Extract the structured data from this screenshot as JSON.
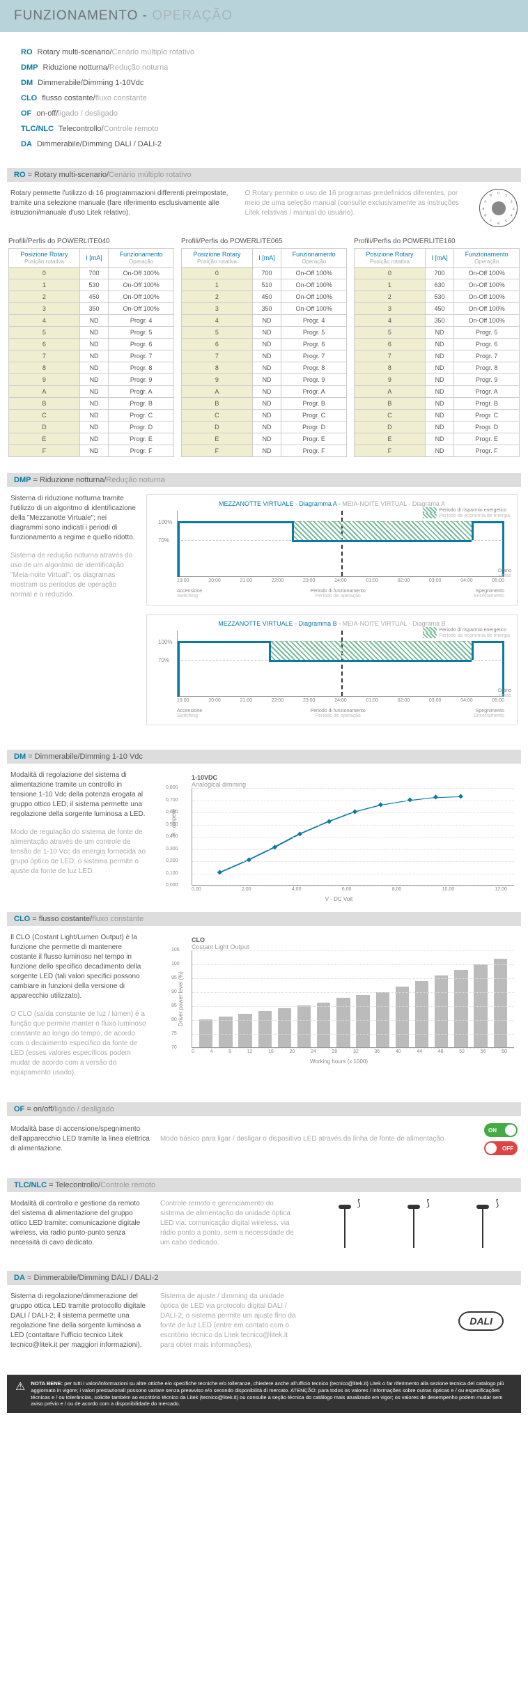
{
  "header": {
    "it": "FUNZIONAMENTO",
    "pt": "OPERAÇÃO"
  },
  "codes": [
    {
      "c": "RO",
      "it": "Rotary multi-scenario",
      "pt": "Cenário múltiplo rotativo"
    },
    {
      "c": "DMP",
      "it": "Riduzione notturna",
      "pt": "Redução noturna"
    },
    {
      "c": "DM",
      "it": "Dimmerabile/Dimming 1-10Vdc",
      "pt": ""
    },
    {
      "c": "CLO",
      "it": "flusso costante",
      "pt": "fluxo constante"
    },
    {
      "c": "OF",
      "it": "on-off",
      "pt": "ligado / desligado"
    },
    {
      "c": "TLC/NLC",
      "it": "Telecontrollo",
      "pt": "Controle remoto"
    },
    {
      "c": "DA",
      "it": "Dimmerabile/Dimming DALI / DALI-2",
      "pt": ""
    }
  ],
  "ro": {
    "bar": {
      "c": "RO",
      "it": "Rotary multi-scenario",
      "pt": "Cenário múltiplo rotativo"
    },
    "txt_it": "Rotary permette l'utilizzo di 16 programmazioni differenti preimpostate, tramite una selezione manuale (fare riferimento esclusivamente alle istruzioni/manuale d'uso Litek relativo).",
    "txt_pt": "O Rotary permite o uso de 16 programas predefinidos diferentes, por meio de uma seleção manual (consulte exclusivamente as instruções Litek relativas / manual do usuário).",
    "col_pos": {
      "it": "Posizione Rotary",
      "pt": "Posição rotativa"
    },
    "col_i": "I [mA]",
    "col_fun": {
      "it": "Funzionamento",
      "pt": "Operação"
    },
    "tables": [
      {
        "title": "Profili/Perfis do POWERLITE040",
        "rows": [
          [
            "0",
            "700",
            "On-Off 100%"
          ],
          [
            "1",
            "530",
            "On-Off 100%"
          ],
          [
            "2",
            "450",
            "On-Off 100%"
          ],
          [
            "3",
            "350",
            "On-Off 100%"
          ],
          [
            "4",
            "ND",
            "Progr. 4"
          ],
          [
            "5",
            "ND",
            "Progr. 5"
          ],
          [
            "6",
            "ND",
            "Progr. 6"
          ],
          [
            "7",
            "ND",
            "Progr. 7"
          ],
          [
            "8",
            "ND",
            "Progr. 8"
          ],
          [
            "9",
            "ND",
            "Progr. 9"
          ],
          [
            "A",
            "ND",
            "Progr. A"
          ],
          [
            "B",
            "ND",
            "Progr. B"
          ],
          [
            "C",
            "ND",
            "Progr. C"
          ],
          [
            "D",
            "ND",
            "Progr. D"
          ],
          [
            "E",
            "ND",
            "Progr. E"
          ],
          [
            "F",
            "ND",
            "Progr. F"
          ]
        ]
      },
      {
        "title": "Profili/Perfis do POWERLITE065",
        "rows": [
          [
            "0",
            "700",
            "On-Off 100%"
          ],
          [
            "1",
            "510",
            "On-Off 100%"
          ],
          [
            "2",
            "450",
            "On-Off 100%"
          ],
          [
            "3",
            "350",
            "On-Off 100%"
          ],
          [
            "4",
            "ND",
            "Progr. 4"
          ],
          [
            "5",
            "ND",
            "Progr. 5"
          ],
          [
            "6",
            "ND",
            "Progr. 6"
          ],
          [
            "7",
            "ND",
            "Progr. 7"
          ],
          [
            "8",
            "ND",
            "Progr. 8"
          ],
          [
            "9",
            "ND",
            "Progr. 9"
          ],
          [
            "A",
            "ND",
            "Progr. A"
          ],
          [
            "B",
            "ND",
            "Progr. B"
          ],
          [
            "C",
            "ND",
            "Progr. C"
          ],
          [
            "D",
            "ND",
            "Progr. D"
          ],
          [
            "E",
            "ND",
            "Progr. E"
          ],
          [
            "F",
            "ND",
            "Progr. F"
          ]
        ]
      },
      {
        "title": "Profili/Perfis do POWERLITE160",
        "rows": [
          [
            "0",
            "700",
            "On-Off 100%"
          ],
          [
            "1",
            "630",
            "On-Off 100%"
          ],
          [
            "2",
            "530",
            "On-Off 100%"
          ],
          [
            "3",
            "450",
            "On-Off 100%"
          ],
          [
            "4",
            "350",
            "On-Off 100%"
          ],
          [
            "5",
            "ND",
            "Progr. 5"
          ],
          [
            "6",
            "ND",
            "Progr. 6"
          ],
          [
            "7",
            "ND",
            "Progr. 7"
          ],
          [
            "8",
            "ND",
            "Progr. 8"
          ],
          [
            "9",
            "ND",
            "Progr. 9"
          ],
          [
            "A",
            "ND",
            "Progr. A"
          ],
          [
            "B",
            "ND",
            "Progr. B"
          ],
          [
            "C",
            "ND",
            "Progr. C"
          ],
          [
            "D",
            "ND",
            "Progr. D"
          ],
          [
            "E",
            "ND",
            "Progr. E"
          ],
          [
            "F",
            "ND",
            "Progr. F"
          ]
        ]
      }
    ]
  },
  "dmp": {
    "bar": {
      "c": "DMP",
      "it": "Riduzione notturna",
      "pt": "Redução noturna"
    },
    "txt_it": "Sistema di riduzione notturna tramite l'utilizzo di un algoritmo di identificazione della \"Mezzanotte Virtuale\"; nei diagrammi sono indicati i periodi di funzionamento a regime e quello ridotto.",
    "txt_pt": "Sistema de redução noturna através do uso de um algoritmo de identificação \"Meia-noite Virtual\"; os diagramas mostram os períodos de operação normal e o reduzido.",
    "ch_a": {
      "it": "MEZZANOTTE VIRTUALE - Diagramma A",
      "pt": "MEIA-NOITE VIRTUAL - Diagrama A"
    },
    "ch_b": {
      "it": "MEZZANOTTE VIRTUALE - Diagramma B",
      "pt": "MEIA-NOITE VIRTUAL - Diagrama B"
    },
    "legend": {
      "it": "Periodo di risparmio energetico",
      "pt": "Período de economia de energia"
    },
    "xlabels": [
      "19:00",
      "20:00",
      "21:00",
      "22:00",
      "23:00",
      "24:00",
      "01:00",
      "02:00",
      "03:00",
      "04:00",
      "05:00"
    ],
    "ylevels": [
      "100%",
      "70%"
    ],
    "btm": {
      "acc_it": "Accensione",
      "acc_pt": "Switching",
      "per_it": "Periodo di funzionamento",
      "per_pt": "Período de operação",
      "spg_it": "Spegnimento",
      "spg_pt": "Encerramento",
      "or_it": "Orario",
      "or_pt": "Horas"
    },
    "axis_v": {
      "it": "Potenza assorbita",
      "pt": "P.tomada"
    }
  },
  "dm": {
    "bar": {
      "c": "DM",
      "it": "Dimmerabile/Dimming 1-10 Vdc",
      "pt": ""
    },
    "txt_it": "Modalità di regolazione del sistema di alimentazione tramite un controllo in tensione 1-10 Vdc della potenza erogata al gruppo ottico LED; il sistema permette una regolazione della sorgente luminosa a LED.",
    "txt_pt": "Modo de regulação do sistema de fonte de alimentação através de um controle de tensão de 1-10 Vcc da energia fornecida ao grupo óptico de LED; o sistema permite o ajuste da fonte de luz LED.",
    "title": "1-10VDC",
    "sub": "Analogical dimming",
    "ylabels": [
      "0,800",
      "0,700",
      "0,600",
      "0,500",
      "0,400",
      "0,300",
      "0,200",
      "0,100",
      "0,000"
    ],
    "xlabels": [
      "0,00",
      "2,00",
      "4,00",
      "6,00",
      "8,00",
      "10,00",
      "12,00"
    ],
    "ylab": "A - ampere",
    "xlab": "V - DC Volt",
    "points": [
      [
        8,
        12
      ],
      [
        17,
        25
      ],
      [
        25,
        38
      ],
      [
        33,
        52
      ],
      [
        42,
        65
      ],
      [
        50,
        75
      ],
      [
        58,
        82
      ],
      [
        67,
        87
      ],
      [
        75,
        90
      ],
      [
        83,
        91
      ]
    ]
  },
  "clo": {
    "bar": {
      "c": "CLO",
      "it": "flusso costante",
      "pt": "fluxo constante"
    },
    "txt_it": "Il CLO (Costant Light/Lumen Output) è la funzione che permette di mantenere costante il flusso luminoso nel tempo in funzione dello specifico decadimento della sorgente LED (tali valori specifici possono cambiare in funzioni della versione di apparecchio utilizzato).",
    "txt_pt": "O CLO (saída constante de luz / lúmen) é a função que permite manter o fluxo luminoso constante ao longo do tempo, de acordo com o decaimento específico da fonte de LED (esses valores específicos podem mudar de acordo com a versão do equipamento usado).",
    "title": "CLO",
    "sub": "Costant Light Output",
    "ylabels": [
      "105",
      "100",
      "95",
      "90",
      "85",
      "80",
      "75",
      "70"
    ],
    "xlabels": [
      "0",
      "4",
      "8",
      "12",
      "16",
      "20",
      "24",
      "28",
      "32",
      "36",
      "40",
      "44",
      "48",
      "52",
      "56",
      "60"
    ],
    "ylab": "Driver power level (%)",
    "xlab": "Working hours (x 1000)",
    "bars": [
      80,
      81,
      82,
      83,
      84,
      85,
      86,
      88,
      89,
      90,
      92,
      94,
      96,
      98,
      100,
      102
    ]
  },
  "of": {
    "bar": {
      "c": "OF",
      "it": "on/off",
      "pt": "ligado / desligado"
    },
    "txt_it": "Modalità base di accensione/spegnimento dell'apparecchio LED tramite la linea elettrica di alimentazione.",
    "txt_pt": "Modo básico para ligar / desligar o dispositivo LED através da linha de fonte de alimentação.",
    "on": "ON",
    "off": "OFF"
  },
  "tlc": {
    "bar": {
      "c": "TLC/NLC",
      "it": "Telecontrollo",
      "pt": "Controle remoto"
    },
    "txt_it": "Modalità di controllo e gestione da remoto del sistema di alimentazione del gruppo ottico LED tramite: comunicazione digitale wireless, via radio punto-punto senza necessità di cavo dedicato.",
    "txt_pt": "Controle remoto e gerenciamento do sistema de alimentação da unidade óptica LED via: comunicação digital wireless, via rádio ponto a ponto, sem a necessidade de um cabo dedicado."
  },
  "da": {
    "bar": {
      "c": "DA",
      "it": "Dimmerabile/Dimming DALI / DALI-2",
      "pt": ""
    },
    "txt_it": "Sistema di regolazione/dimmerazione del gruppo ottica LED tramite protocollo digitale DALI / DALI-2; il sistema permette una regolazione fine della sorgente luminosa a LED (contattare l'ufficio tecnico Litek tecnico@litek.it per maggiori informazioni).",
    "txt_pt": "Sistema de ajuste / dimming da unidade óptica de LED via protocolo digital DALI / DALI-2; o sistema permite um ajuste fino da fonte de luz LED (entre em contato com o escritório técnico da Litek tecnico@litek.it para obter mais informações).",
    "badge": "DALI"
  },
  "nota": {
    "lbl": "NOTA BENE:",
    "txt": "per tutti i valori/informazioni su altre ottiche e/o specifiche tecniche e/o tolleranze, chiedere anche all'ufficio tecnico (tecnico@litek.it) Litek o far riferimento alla sezione tecnica del catalogo più aggiornato in vigore; i valori prestazionali possono variare senza preavviso e/o secondo disponibilità di mercato. ATENÇÃO: para todos os valores / informações sobre outras ópticas e / ou especificações técnicas e / ou tolerâncias, solicite também ao escritório técnico da Litek (tecnico@litek.it) ou consulte a seção técnica do catálogo mais atualizado em vigor; os valores de desempenho podem mudar sem aviso prévio e / ou de acordo com a disponibilidade do mercado."
  }
}
